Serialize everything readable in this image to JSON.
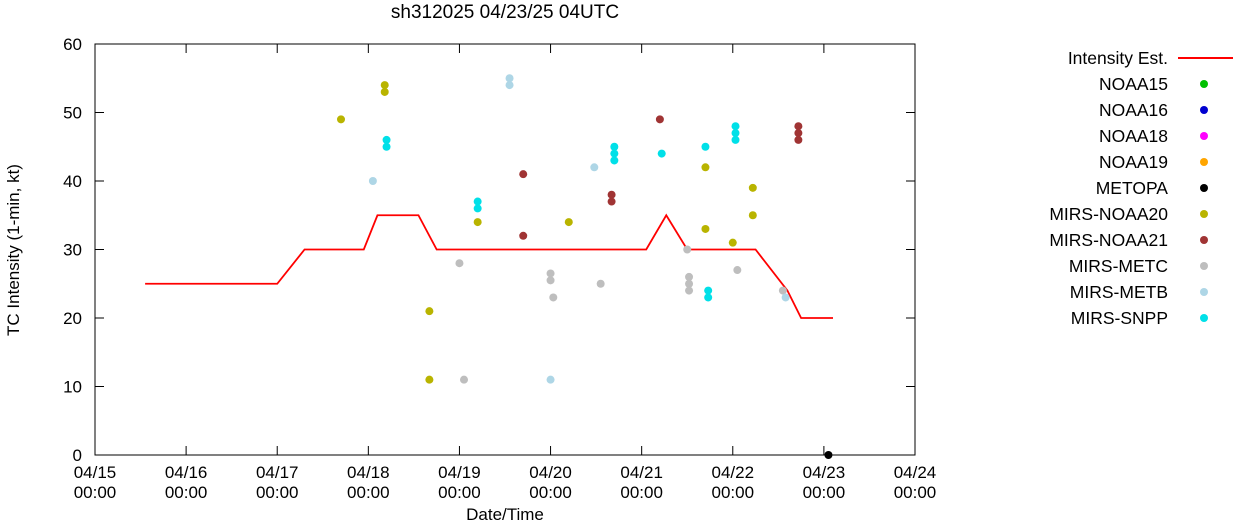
{
  "chart_data": {
    "type": "scatter",
    "title": "sh312025 04/23/25 04UTC",
    "xlabel": "Date/Time",
    "ylabel": "TC Intensity (1-min, kt)",
    "x_axis": {
      "range_days": [
        0,
        9
      ],
      "tick_labels": [
        [
          "04/15",
          "00:00"
        ],
        [
          "04/16",
          "00:00"
        ],
        [
          "04/17",
          "00:00"
        ],
        [
          "04/18",
          "00:00"
        ],
        [
          "04/19",
          "00:00"
        ],
        [
          "04/20",
          "00:00"
        ],
        [
          "04/21",
          "00:00"
        ],
        [
          "04/22",
          "00:00"
        ],
        [
          "04/23",
          "00:00"
        ],
        [
          "04/24",
          "00:00"
        ]
      ]
    },
    "y_axis": {
      "min": 0,
      "max": 60,
      "ticks": [
        0,
        10,
        20,
        30,
        40,
        50,
        60
      ]
    },
    "intensity_line": {
      "name": "Intensity Est.",
      "color": "#ff0000",
      "points": [
        [
          0.55,
          25
        ],
        [
          2.0,
          25
        ],
        [
          2.3,
          30
        ],
        [
          2.95,
          30
        ],
        [
          3.1,
          35
        ],
        [
          3.55,
          35
        ],
        [
          3.75,
          30
        ],
        [
          6.05,
          30
        ],
        [
          6.27,
          35
        ],
        [
          6.5,
          30
        ],
        [
          7.25,
          30
        ],
        [
          7.6,
          24
        ],
        [
          7.75,
          20
        ],
        [
          8.1,
          20
        ]
      ]
    },
    "series": [
      {
        "name": "NOAA15",
        "color": "#00c000",
        "points": []
      },
      {
        "name": "NOAA16",
        "color": "#0000d0",
        "points": []
      },
      {
        "name": "NOAA18",
        "color": "#ff00ff",
        "points": []
      },
      {
        "name": "NOAA19",
        "color": "#ffa500",
        "points": []
      },
      {
        "name": "METOPA",
        "color": "#000000",
        "points": [
          [
            8.05,
            0
          ]
        ]
      },
      {
        "name": "MIRS-NOAA20",
        "color": "#b9b400",
        "points": [
          [
            2.7,
            49
          ],
          [
            3.18,
            54
          ],
          [
            3.18,
            53
          ],
          [
            3.67,
            21
          ],
          [
            3.67,
            11
          ],
          [
            4.2,
            34
          ],
          [
            5.2,
            34
          ],
          [
            6.7,
            42
          ],
          [
            6.7,
            33
          ],
          [
            7.0,
            31
          ],
          [
            7.22,
            39
          ],
          [
            7.22,
            35
          ]
        ]
      },
      {
        "name": "MIRS-NOAA21",
        "color": "#a03434",
        "points": [
          [
            4.7,
            41
          ],
          [
            4.7,
            32
          ],
          [
            5.67,
            38
          ],
          [
            5.67,
            37
          ],
          [
            6.2,
            49
          ],
          [
            7.72,
            48
          ],
          [
            7.72,
            47
          ],
          [
            7.72,
            46
          ]
        ]
      },
      {
        "name": "MIRS-METC",
        "color": "#bebebe",
        "points": [
          [
            4.0,
            28
          ],
          [
            4.05,
            11
          ],
          [
            5.0,
            26.5
          ],
          [
            5.0,
            25.5
          ],
          [
            5.03,
            23
          ],
          [
            5.55,
            25
          ],
          [
            6.5,
            30
          ],
          [
            6.52,
            26
          ],
          [
            6.52,
            25
          ],
          [
            6.52,
            24
          ],
          [
            7.05,
            27
          ],
          [
            7.55,
            24
          ]
        ]
      },
      {
        "name": "MIRS-METB",
        "color": "#aed6e6",
        "points": [
          [
            3.05,
            40
          ],
          [
            4.55,
            55
          ],
          [
            4.55,
            54
          ],
          [
            5.0,
            11
          ],
          [
            5.48,
            42
          ],
          [
            7.58,
            23
          ]
        ]
      },
      {
        "name": "MIRS-SNPP",
        "color": "#00e0e8",
        "points": [
          [
            3.2,
            46
          ],
          [
            3.2,
            45
          ],
          [
            4.2,
            37
          ],
          [
            4.2,
            36
          ],
          [
            5.7,
            45
          ],
          [
            5.7,
            44
          ],
          [
            5.7,
            43
          ],
          [
            6.22,
            44
          ],
          [
            6.7,
            45
          ],
          [
            6.73,
            24
          ],
          [
            6.73,
            23
          ],
          [
            7.03,
            48
          ],
          [
            7.03,
            47
          ],
          [
            7.03,
            46
          ]
        ]
      }
    ],
    "legend": [
      {
        "label": "Intensity Est.",
        "marker": "line",
        "color": "#ff0000"
      },
      {
        "label": "NOAA15",
        "marker": "dot",
        "color": "#00c000"
      },
      {
        "label": "NOAA16",
        "marker": "dot",
        "color": "#0000d0"
      },
      {
        "label": "NOAA18",
        "marker": "dot",
        "color": "#ff00ff"
      },
      {
        "label": "NOAA19",
        "marker": "dot",
        "color": "#ffa500"
      },
      {
        "label": "METOPA",
        "marker": "dot",
        "color": "#000000"
      },
      {
        "label": "MIRS-NOAA20",
        "marker": "dot",
        "color": "#b9b400"
      },
      {
        "label": "MIRS-NOAA21",
        "marker": "dot",
        "color": "#a03434"
      },
      {
        "label": "MIRS-METC",
        "marker": "dot",
        "color": "#bebebe"
      },
      {
        "label": "MIRS-METB",
        "marker": "dot",
        "color": "#aed6e6"
      },
      {
        "label": "MIRS-SNPP",
        "marker": "dot",
        "color": "#00e0e8"
      }
    ]
  }
}
